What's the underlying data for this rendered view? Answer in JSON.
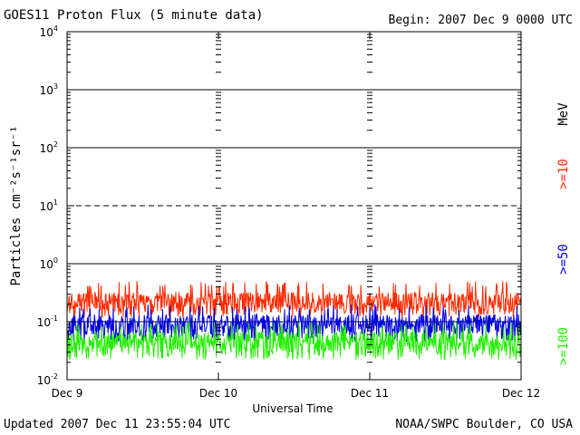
{
  "header": {
    "title": "GOES11 Proton Flux (5 minute data)",
    "begin": "Begin: 2007 Dec 9 0000 UTC"
  },
  "footer": {
    "updated": "Updated 2007 Dec 11 23:55:04 UTC",
    "credit": "NOAA/SWPC Boulder, CO USA"
  },
  "colors": {
    "red": "#ff2a00",
    "blue": "#0000dd",
    "green": "#22ee00",
    "axis": "#000000"
  },
  "chart_data": {
    "type": "line",
    "title": "GOES11 Proton Flux (5 minute data)",
    "xlabel": "Universal Time",
    "ylabel": "Particles cm⁻²s⁻¹sr⁻¹",
    "yscale": "log",
    "ylim": [
      0.01,
      10000
    ],
    "xlim": [
      0,
      3
    ],
    "x_tick_labels": [
      "Dec 9",
      "Dec 10",
      "Dec 11",
      "Dec 12"
    ],
    "y_tick_labels": [
      {
        "base": "10",
        "exp": "-2"
      },
      {
        "base": "10",
        "exp": "-1"
      },
      {
        "base": "10",
        "exp": "0"
      },
      {
        "base": "10",
        "exp": "1"
      },
      {
        "base": "10",
        "exp": "2"
      },
      {
        "base": "10",
        "exp": "3"
      },
      {
        "base": "10",
        "exp": "4"
      }
    ],
    "unit_label": "MeV",
    "grid": "major decades solid, 10^1 dashed",
    "series": [
      {
        "name": ">=10",
        "color": "#ff2a00",
        "typical": 0.22,
        "min": 0.12,
        "max": 0.5
      },
      {
        "name": ">=50",
        "color": "#0000dd",
        "typical": 0.09,
        "min": 0.045,
        "max": 0.2
      },
      {
        "name": ">=100",
        "color": "#22ee00",
        "typical": 0.045,
        "min": 0.022,
        "max": 0.1
      }
    ]
  }
}
